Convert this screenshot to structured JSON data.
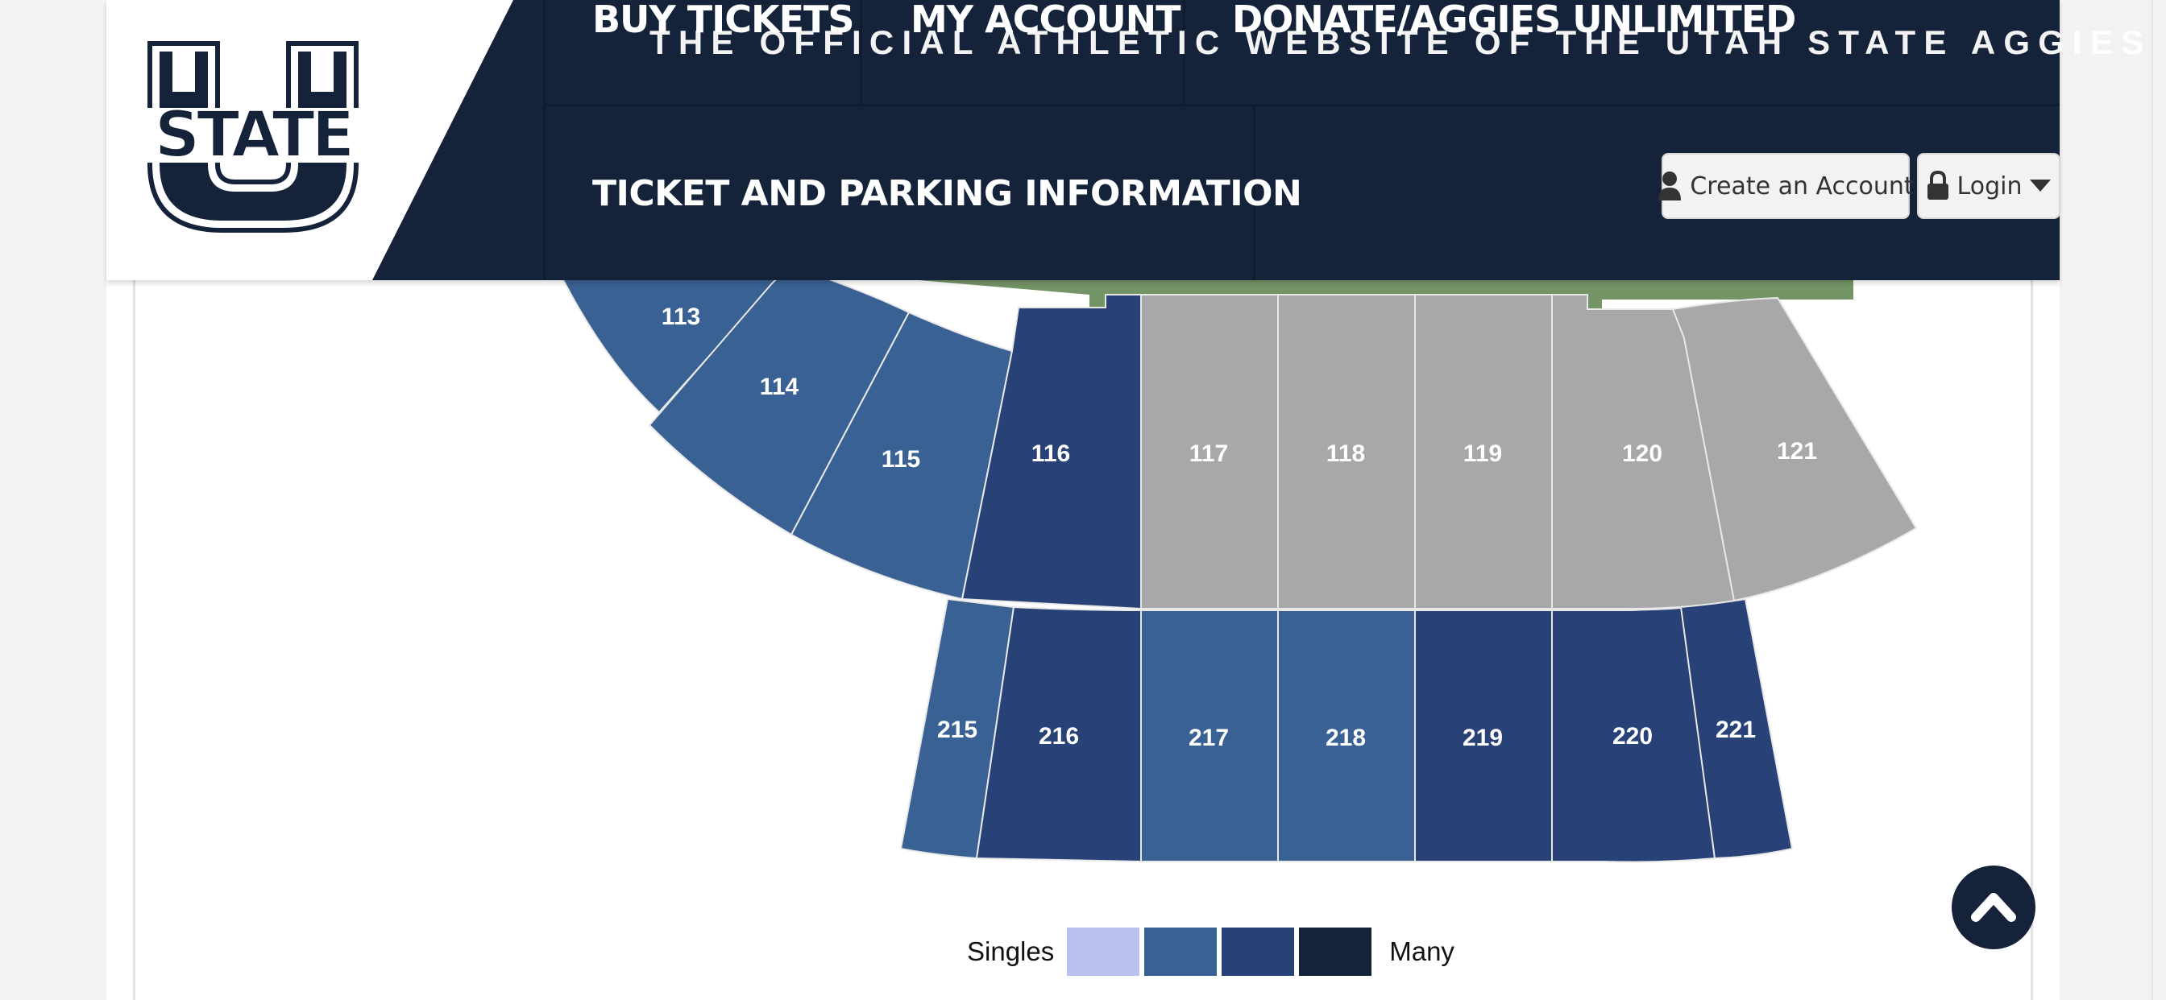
{
  "header": {
    "nav_top": [
      "BUY TICKETS",
      "MY ACCOUNT",
      "DONATE/AGGIES UNLIMITED"
    ],
    "tagline": "THE OFFICIAL ATHLETIC WEBSITE OF THE UTAH STATE AGGIES",
    "ticket_parking": "TICKET AND PARKING INFORMATION",
    "create_account": "Create an Account",
    "login": "Login",
    "logo_text": "STATE"
  },
  "colors": {
    "navy": "#14223a",
    "field_green": "#739465",
    "avail_medium": "#3a6193",
    "avail_high": "#284176",
    "unavailable": "#a8a8a8",
    "legend": [
      "#b9c2ef",
      "#3a6193",
      "#284176",
      "#14223a"
    ]
  },
  "seat_map": {
    "lower": [
      {
        "label": "113",
        "fill": "medium"
      },
      {
        "label": "114",
        "fill": "medium"
      },
      {
        "label": "115",
        "fill": "medium"
      },
      {
        "label": "116",
        "fill": "high"
      },
      {
        "label": "117",
        "fill": "none"
      },
      {
        "label": "118",
        "fill": "none"
      },
      {
        "label": "119",
        "fill": "none"
      },
      {
        "label": "120",
        "fill": "none"
      },
      {
        "label": "121",
        "fill": "none"
      }
    ],
    "upper": [
      {
        "label": "215",
        "fill": "medium"
      },
      {
        "label": "216",
        "fill": "high"
      },
      {
        "label": "217",
        "fill": "medium"
      },
      {
        "label": "218",
        "fill": "medium"
      },
      {
        "label": "219",
        "fill": "high"
      },
      {
        "label": "220",
        "fill": "high"
      },
      {
        "label": "221",
        "fill": "high"
      }
    ]
  },
  "legend": {
    "low_label": "Singles",
    "high_label": "Many"
  }
}
